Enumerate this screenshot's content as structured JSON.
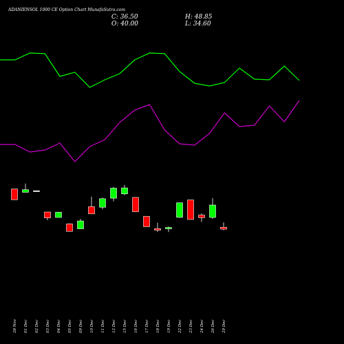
{
  "header": {
    "title": "ADANIENSOL 1000 CE Option Chart MunafaSutra.com",
    "close_label": "C: 36.50",
    "open_label": "O: 40.00",
    "high_label": "H: 48.85",
    "low_label": "L: 34.60"
  },
  "colors": {
    "background": "#000000",
    "up": "#00ff00",
    "down": "#ff0000",
    "line_upper": "#00ff00",
    "line_lower": "#cc00cc",
    "text": "#ffffff"
  },
  "chart_data": {
    "type": "candlestick",
    "title": "ADANIENSOL 1000 CE Option Chart MunafaSutra.com",
    "categories": [
      "28 Nov",
      "01 Dec",
      "02 Dec",
      "03 Dec",
      "04 Dec",
      "05 Dec",
      "09 Dec",
      "10 Dec",
      "11 Dec",
      "12 Dec",
      "15 Dec",
      "16 Dec",
      "17 Dec",
      "18 Dec",
      "19 Dec",
      "22 Dec",
      "23 Dec",
      "24 Dec",
      "26 Dec",
      "29 Dec"
    ],
    "candles": [
      {
        "date": "28 Nov",
        "open": 110.2,
        "high": 110.2,
        "low": 90.5,
        "close": 90.5,
        "dir": "down"
      },
      {
        "date": "01 Dec",
        "open": 104.1,
        "high": 120.2,
        "low": 104.1,
        "close": 108.9,
        "dir": "up"
      },
      {
        "date": "02 Dec",
        "open": 106.9,
        "high": 106.9,
        "low": 106.9,
        "close": 106.9,
        "dir": "flat"
      },
      {
        "date": "03 Dec",
        "open": 68.0,
        "high": 68.0,
        "low": 52.9,
        "close": 57.1,
        "dir": "down"
      },
      {
        "date": "04 Dec",
        "open": 58.0,
        "high": 68.0,
        "low": 58.0,
        "close": 67.5,
        "dir": "up"
      },
      {
        "date": "05 Dec",
        "open": 46.2,
        "high": 47.1,
        "low": 32.5,
        "close": 32.5,
        "dir": "down"
      },
      {
        "date": "09 Dec",
        "open": 37.2,
        "high": 55.4,
        "low": 37.2,
        "close": 51.6,
        "dir": "up"
      },
      {
        "date": "10 Dec",
        "open": 77.7,
        "high": 96.0,
        "low": 64.6,
        "close": 64.6,
        "dir": "down"
      },
      {
        "date": "11 Dec",
        "open": 76.7,
        "high": 94.2,
        "low": 72.9,
        "close": 92.3,
        "dir": "up"
      },
      {
        "date": "12 Dec",
        "open": 93.3,
        "high": 113.9,
        "low": 87.6,
        "close": 111.6,
        "dir": "up"
      },
      {
        "date": "15 Dec",
        "open": 101.2,
        "high": 117.6,
        "low": 98.8,
        "close": 112.1,
        "dir": "up"
      },
      {
        "date": "16 Dec",
        "open": 94.7,
        "high": 94.7,
        "low": 68.4,
        "close": 68.4,
        "dir": "down"
      },
      {
        "date": "17 Dec",
        "open": 59.9,
        "high": 59.9,
        "low": 41.0,
        "close": 41.0,
        "dir": "down"
      },
      {
        "date": "18 Dec",
        "open": 37.4,
        "high": 48.3,
        "low": 31.3,
        "close": 34.6,
        "dir": "down"
      },
      {
        "date": "19 Dec",
        "open": 37.2,
        "high": 41.3,
        "low": 31.3,
        "close": 39.6,
        "dir": "up"
      },
      {
        "date": "22 Dec",
        "open": 58.2,
        "high": 84.9,
        "low": 57.1,
        "close": 84.9,
        "dir": "up"
      },
      {
        "date": "23 Dec",
        "open": 90.1,
        "high": 90.1,
        "low": 54.3,
        "close": 54.3,
        "dir": "down"
      },
      {
        "date": "24 Dec",
        "open": 62.3,
        "high": 65.3,
        "low": 49.7,
        "close": 57.6,
        "dir": "down"
      },
      {
        "date": "26 Dec",
        "open": 58.0,
        "high": 93.3,
        "low": 55.3,
        "close": 80.7,
        "dir": "up"
      },
      {
        "date": "29 Dec",
        "open": 40.0,
        "high": 48.85,
        "low": 34.6,
        "close": 36.5,
        "dir": "down"
      }
    ],
    "line_upper": [
      87,
      87,
      77,
      78,
      111,
      105,
      127,
      116,
      107,
      87,
      77,
      78,
      104,
      121,
      125,
      120,
      99,
      115,
      116,
      96,
      117
    ],
    "line_lower": [
      210,
      210,
      221,
      218,
      208,
      235,
      213,
      203,
      178,
      160,
      152,
      189,
      209,
      211,
      194,
      164,
      184,
      182,
      154,
      177,
      146
    ],
    "line_range": [
      0,
      250
    ],
    "ylim": [
      0,
      135
    ],
    "xlabel": "",
    "ylabel": ""
  }
}
